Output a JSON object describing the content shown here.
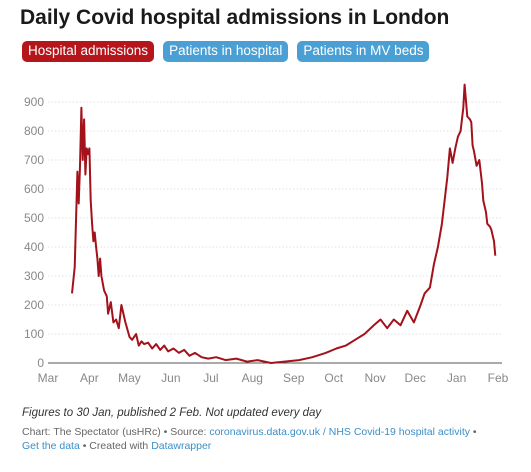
{
  "header": {
    "title": "Daily Covid hospital admissions in London"
  },
  "tabs": [
    {
      "label": "Hospital admissions",
      "color": "#b5161c",
      "active": true
    },
    {
      "label": "Patients in hospital",
      "color": "#4aa0d5",
      "active": false
    },
    {
      "label": "Patients in MV beds",
      "color": "#4aa0d5",
      "active": false
    }
  ],
  "footer": {
    "note": "Figures to 30 Jan, published 2 Feb. Not updated every day",
    "chart_by": "Chart: The Spectator (usHRc) • Source:",
    "source_link": "coronavirus.data.gov.uk / NHS Covid-19 hospital activity",
    "sep1": " •",
    "get_data": "Get the data",
    "sep2": " • Created with",
    "created_with": "Datawrapper"
  },
  "chart_data": {
    "type": "line",
    "title": "Daily Covid hospital admissions in London",
    "xlabel": "",
    "ylabel": "",
    "ylim": [
      0,
      900
    ],
    "y_ticks": [
      0,
      100,
      200,
      300,
      400,
      500,
      600,
      700,
      800,
      900
    ],
    "x_tick_labels": [
      "Mar",
      "Apr",
      "May",
      "Jun",
      "Jul",
      "Aug",
      "Sep",
      "Oct",
      "Nov",
      "Dec",
      "Jan",
      "Feb"
    ],
    "x_ticks": [
      "2020-03-01",
      "2020-04-01",
      "2020-05-01",
      "2020-06-01",
      "2020-07-01",
      "2020-08-01",
      "2020-09-01",
      "2020-10-01",
      "2020-11-01",
      "2020-12-01",
      "2021-01-01",
      "2021-02-01"
    ],
    "grid": true,
    "line_color": "#a3121a",
    "series": [
      {
        "x": [
          "2020-03-19",
          "2020-03-21",
          "2020-03-23",
          "2020-03-24",
          "2020-03-25",
          "2020-03-26",
          "2020-03-27",
          "2020-03-28",
          "2020-03-29",
          "2020-03-30",
          "2020-03-31",
          "2020-04-01",
          "2020-04-02",
          "2020-04-03",
          "2020-04-04",
          "2020-04-05",
          "2020-04-06",
          "2020-04-07",
          "2020-04-08",
          "2020-04-09",
          "2020-04-10",
          "2020-04-12",
          "2020-04-14",
          "2020-04-15",
          "2020-04-17",
          "2020-04-19",
          "2020-04-21",
          "2020-04-23",
          "2020-04-25",
          "2020-04-28",
          "2020-05-01",
          "2020-05-03",
          "2020-05-06",
          "2020-05-08",
          "2020-05-10",
          "2020-05-12",
          "2020-05-15",
          "2020-05-18",
          "2020-05-21",
          "2020-05-24",
          "2020-05-27",
          "2020-05-30",
          "2020-06-03",
          "2020-06-07",
          "2020-06-11",
          "2020-06-15",
          "2020-06-19",
          "2020-06-24",
          "2020-06-29",
          "2020-07-05",
          "2020-07-12",
          "2020-07-20",
          "2020-07-28",
          "2020-08-05",
          "2020-08-15",
          "2020-08-25",
          "2020-09-05",
          "2020-09-15",
          "2020-09-25",
          "2020-10-03",
          "2020-10-10",
          "2020-10-17",
          "2020-10-24",
          "2020-10-31",
          "2020-11-05",
          "2020-11-10",
          "2020-11-15",
          "2020-11-20",
          "2020-11-25",
          "2020-11-30",
          "2020-12-05",
          "2020-12-08",
          "2020-12-12",
          "2020-12-15",
          "2020-12-18",
          "2020-12-21",
          "2020-12-23",
          "2020-12-25",
          "2020-12-27",
          "2020-12-29",
          "2020-12-31",
          "2021-01-02",
          "2021-01-04",
          "2021-01-06",
          "2021-01-07",
          "2021-01-09",
          "2021-01-11",
          "2021-01-12",
          "2021-01-13",
          "2021-01-14",
          "2021-01-16",
          "2021-01-18",
          "2021-01-20",
          "2021-01-21",
          "2021-01-23",
          "2021-01-24",
          "2021-01-26",
          "2021-01-27",
          "2021-01-29",
          "2021-01-30"
        ],
        "values": [
          240,
          330,
          660,
          550,
          680,
          880,
          700,
          840,
          650,
          740,
          720,
          740,
          560,
          480,
          420,
          450,
          400,
          360,
          300,
          360,
          300,
          250,
          230,
          170,
          210,
          140,
          150,
          120,
          200,
          140,
          90,
          80,
          100,
          60,
          75,
          65,
          70,
          50,
          65,
          45,
          60,
          40,
          50,
          35,
          45,
          25,
          35,
          20,
          15,
          20,
          10,
          15,
          5,
          10,
          0,
          5,
          10,
          20,
          35,
          50,
          60,
          80,
          100,
          130,
          150,
          120,
          150,
          130,
          180,
          140,
          200,
          240,
          260,
          340,
          400,
          480,
          560,
          640,
          740,
          690,
          740,
          780,
          800,
          880,
          960,
          850,
          840,
          830,
          750,
          730,
          680,
          700,
          620,
          560,
          520,
          480,
          470,
          460,
          420,
          370
        ]
      }
    ]
  }
}
